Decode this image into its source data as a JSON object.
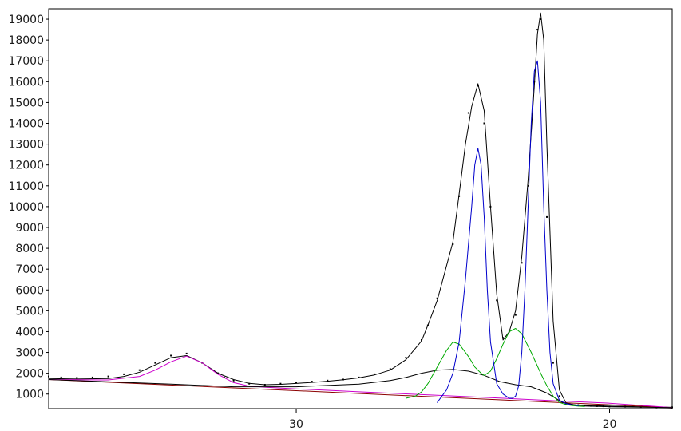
{
  "chart_data": {
    "type": "line",
    "title": "",
    "xlabel": "",
    "ylabel": "",
    "x_reversed": true,
    "xlim": [
      37.9,
      18.0
    ],
    "ylim": [
      300,
      19500
    ],
    "grid": false,
    "x_ticks": [
      {
        "value": 30,
        "label": "30"
      },
      {
        "value": 20,
        "label": "20"
      }
    ],
    "y_ticks": [
      {
        "value": 1000,
        "label": "1000"
      },
      {
        "value": 2000,
        "label": "2000"
      },
      {
        "value": 3000,
        "label": "3000"
      },
      {
        "value": 4000,
        "label": "4000"
      },
      {
        "value": 5000,
        "label": "5000"
      },
      {
        "value": 6000,
        "label": "6000"
      },
      {
        "value": 7000,
        "label": "7000"
      },
      {
        "value": 8000,
        "label": "8000"
      },
      {
        "value": 9000,
        "label": "9000"
      },
      {
        "value": 10000,
        "label": "10000"
      },
      {
        "value": 11000,
        "label": "11000"
      },
      {
        "value": 12000,
        "label": "12000"
      },
      {
        "value": 13000,
        "label": "13000"
      },
      {
        "value": 14000,
        "label": "14000"
      },
      {
        "value": 15000,
        "label": "15000"
      },
      {
        "value": 16000,
        "label": "16000"
      },
      {
        "value": 17000,
        "label": "17000"
      },
      {
        "value": 18000,
        "label": "18000"
      },
      {
        "value": 19000,
        "label": "19000"
      }
    ],
    "series": [
      {
        "role": "observed",
        "style": "dots",
        "color": "#000000",
        "x": [
          37.9,
          37.5,
          37.0,
          36.5,
          36.0,
          35.5,
          35.0,
          34.5,
          34.0,
          33.5,
          33.0,
          32.5,
          32.3,
          32.0,
          31.5,
          31.0,
          30.5,
          30.0,
          29.5,
          29.0,
          28.5,
          28.0,
          27.5,
          27.0,
          26.5,
          26.0,
          25.8,
          25.5,
          25.0,
          24.8,
          24.5,
          24.2,
          24.0,
          23.8,
          23.6,
          23.4,
          23.2,
          23.0,
          22.8,
          22.6,
          22.4,
          22.3,
          22.2,
          22.0,
          21.8,
          21.6,
          21.4,
          21.2,
          21.0,
          20.8,
          20.6,
          20.4,
          20.2,
          20.0,
          19.5,
          19.0,
          18.5,
          18.0
        ],
        "y": [
          1850,
          1800,
          1780,
          1800,
          1850,
          1950,
          2150,
          2500,
          2850,
          2950,
          2500,
          2000,
          1800,
          1650,
          1500,
          1450,
          1500,
          1550,
          1600,
          1650,
          1700,
          1800,
          1950,
          2200,
          2750,
          3600,
          4300,
          5600,
          8200,
          10500,
          14500,
          15800,
          14000,
          10000,
          5500,
          3700,
          4000,
          4800,
          7300,
          11000,
          16000,
          18500,
          19000,
          9500,
          2500,
          900,
          550,
          500,
          470,
          450,
          430,
          420,
          410,
          400,
          390,
          380,
          370,
          360
        ]
      },
      {
        "role": "fit-total",
        "style": "line",
        "color": "#000000",
        "x": [
          37.9,
          37.0,
          36.0,
          35.5,
          35.0,
          34.5,
          34.0,
          33.5,
          33.0,
          32.5,
          32.0,
          31.5,
          31.0,
          30.5,
          30.0,
          29.5,
          29.0,
          28.5,
          28.0,
          27.5,
          27.0,
          26.5,
          26.0,
          25.8,
          25.5,
          25.0,
          24.8,
          24.6,
          24.4,
          24.2,
          24.0,
          23.8,
          23.6,
          23.4,
          23.2,
          23.0,
          22.8,
          22.6,
          22.4,
          22.3,
          22.2,
          22.1,
          22.0,
          21.8,
          21.6,
          21.4,
          21.2,
          21.0,
          20.5,
          20.0,
          19.5,
          19.0,
          18.5,
          18.0
        ],
        "y": [
          1750,
          1720,
          1750,
          1850,
          2050,
          2400,
          2750,
          2850,
          2500,
          2000,
          1700,
          1520,
          1450,
          1470,
          1510,
          1560,
          1620,
          1690,
          1780,
          1920,
          2150,
          2650,
          3550,
          4300,
          5500,
          8300,
          10600,
          13000,
          14800,
          15900,
          14600,
          10000,
          5800,
          3600,
          4000,
          5000,
          7600,
          11300,
          15800,
          18300,
          19300,
          18000,
          13000,
          4500,
          1200,
          600,
          500,
          470,
          440,
          420,
          405,
          390,
          375,
          360
        ]
      },
      {
        "role": "baseline",
        "style": "line",
        "color": "#8b0000",
        "x": [
          37.9,
          18.0
        ],
        "y": [
          1700,
          350
        ]
      },
      {
        "role": "peak-1",
        "style": "line",
        "color": "#cc00cc",
        "x": [
          37.9,
          36.0,
          35.0,
          34.5,
          34.0,
          33.5,
          33.0,
          32.5,
          32.0,
          31.5,
          31.0,
          30.0,
          29.0,
          28.0,
          26.0,
          24.0,
          22.0,
          20.0,
          18.0
        ],
        "y": [
          1700,
          1680,
          1850,
          2150,
          2550,
          2820,
          2500,
          1950,
          1550,
          1380,
          1330,
          1250,
          1180,
          1110,
          975,
          840,
          700,
          560,
          350
        ]
      },
      {
        "role": "broad-component",
        "style": "line",
        "color": "#000000",
        "x": [
          37.9,
          34.0,
          32.0,
          30.0,
          28.0,
          27.0,
          26.5,
          26.0,
          25.5,
          25.0,
          24.5,
          24.0,
          23.5,
          23.0,
          22.5,
          22.0,
          21.5,
          21.0,
          20.5,
          20.0,
          19.0,
          18.0
        ],
        "y": [
          1700,
          1480,
          1350,
          1350,
          1480,
          1650,
          1800,
          2000,
          2150,
          2180,
          2100,
          1900,
          1600,
          1450,
          1350,
          1050,
          600,
          430,
          410,
          390,
          370,
          350
        ]
      },
      {
        "role": "peak-2",
        "style": "line",
        "color": "#00aa00",
        "x": [
          26.5,
          26.2,
          26.0,
          25.8,
          25.5,
          25.2,
          25.0,
          24.8,
          24.5,
          24.3,
          24.1,
          24.0,
          23.8,
          23.6,
          23.4,
          23.2,
          23.0,
          22.8,
          22.5,
          22.2,
          22.0,
          21.8,
          21.6,
          21.4,
          21.2,
          21.0,
          20.8
        ],
        "y": [
          800,
          900,
          1100,
          1500,
          2300,
          3100,
          3500,
          3400,
          2800,
          2300,
          2000,
          1900,
          2100,
          2700,
          3400,
          4000,
          4150,
          3900,
          3000,
          2000,
          1400,
          900,
          600,
          500,
          450,
          420,
          400
        ]
      },
      {
        "role": "peak-3",
        "style": "line",
        "color": "#0000cc",
        "x": [
          25.5,
          25.2,
          25.0,
          24.8,
          24.6,
          24.4,
          24.3,
          24.2,
          24.1,
          24.0,
          23.9,
          23.8,
          23.6,
          23.4,
          23.2,
          23.1,
          23.0,
          22.9,
          22.8,
          22.7,
          22.6,
          22.5,
          22.4,
          22.3,
          22.2,
          22.1,
          22.0,
          21.9,
          21.8,
          21.6,
          21.4,
          21.2,
          21.0
        ],
        "y": [
          600,
          1200,
          2000,
          3500,
          6500,
          10000,
          12000,
          12800,
          12000,
          9500,
          6000,
          3500,
          1500,
          1000,
          800,
          800,
          900,
          1400,
          3000,
          6000,
          10000,
          14000,
          16500,
          17000,
          15000,
          10000,
          6000,
          3000,
          1500,
          700,
          550,
          480,
          440
        ]
      }
    ]
  }
}
